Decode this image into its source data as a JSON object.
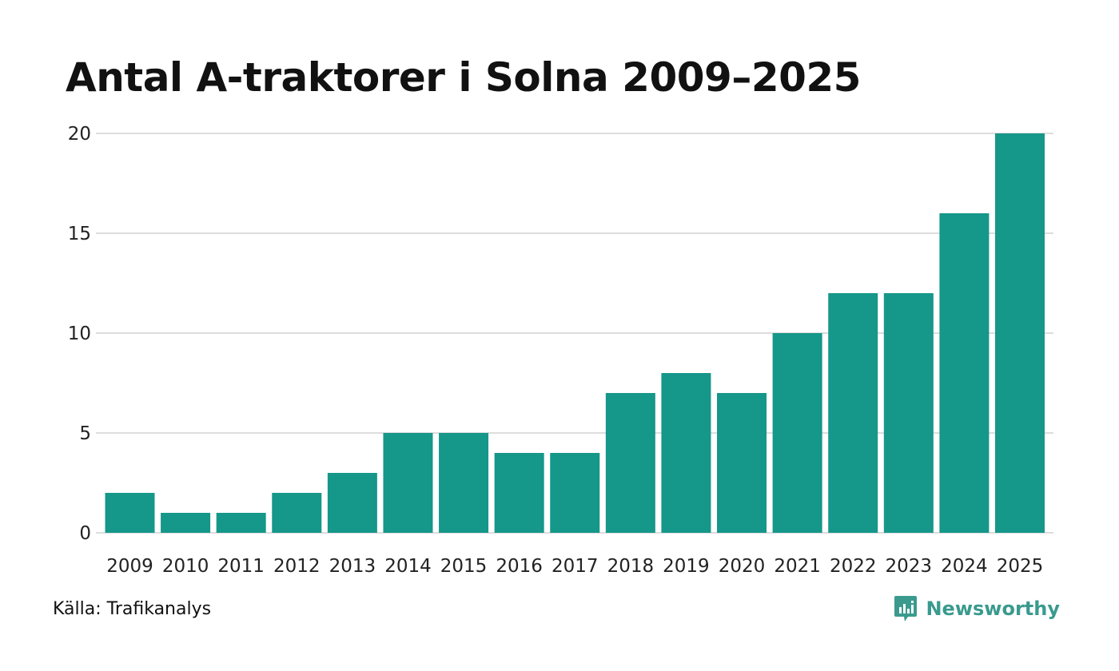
{
  "title": "Antal A-traktorer i Solna 2009–2025",
  "source": "Källa: Trafikanalys",
  "brand": {
    "name": "Newsworthy",
    "icon": "newsworthy-logo-icon",
    "color": "#3a9a8e"
  },
  "colors": {
    "bar": "#15978a",
    "grid": "#dddddd",
    "text": "#111111"
  },
  "chart_data": {
    "type": "bar",
    "title": "Antal A-traktorer i Solna 2009–2025",
    "xlabel": "",
    "ylabel": "",
    "categories": [
      "2009",
      "2010",
      "2011",
      "2012",
      "2013",
      "2014",
      "2015",
      "2016",
      "2017",
      "2018",
      "2019",
      "2020",
      "2021",
      "2022",
      "2023",
      "2024",
      "2025"
    ],
    "values": [
      2,
      1,
      1,
      2,
      3,
      5,
      5,
      4,
      4,
      7,
      8,
      7,
      10,
      12,
      12,
      16,
      20
    ],
    "ylim": [
      0,
      20
    ],
    "yticks": [
      0,
      5,
      10,
      15,
      20
    ],
    "grid": true,
    "legend": "none"
  }
}
